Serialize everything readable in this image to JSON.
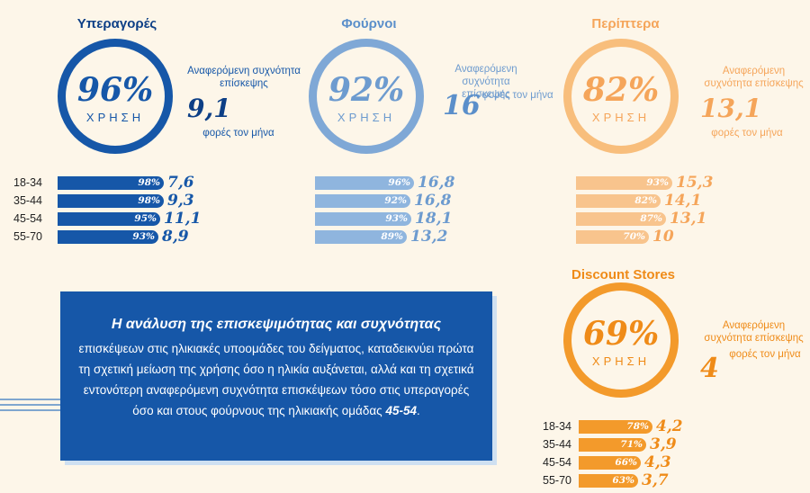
{
  "chart_data": [
    {
      "type": "bar",
      "title": "Υπεραγορές",
      "usage_percent": 96,
      "usage_pct_label": "96%",
      "usage_label": "ΧΡΗΣΗ",
      "frequency_label": "Αναφερόμενη συχνότητα επίσκεψης",
      "frequency_value_label": "9,1",
      "frequency_unit": "φορές τον μήνα",
      "categories": [
        "18-34",
        "35-44",
        "45-54",
        "55-70"
      ],
      "series": [
        {
          "name": "Χρήση %",
          "values": [
            98,
            98,
            95,
            93
          ],
          "labels": [
            "98%",
            "98%",
            "95%",
            "93%"
          ]
        },
        {
          "name": "Συχνότητα",
          "values": [
            7.6,
            9.3,
            11.1,
            8.9
          ],
          "labels": [
            "7,6",
            "9,3",
            "11,1",
            "8,9"
          ]
        }
      ],
      "colors": {
        "ring": "#1657a8",
        "title": "#0d3f86",
        "text": "#1657a8",
        "bar": "#1657a8",
        "value": "#1657a8"
      }
    },
    {
      "type": "bar",
      "title": "Φούρνοι",
      "usage_percent": 92,
      "usage_pct_label": "92%",
      "usage_label": "ΧΡΗΣΗ",
      "frequency_label": "Αναφερόμενη συχνότητα επίσκεψης",
      "frequency_value_label": "16",
      "frequency_unit": "φορές τον μήνα",
      "categories": [
        "18-34",
        "35-44",
        "45-54",
        "55-70"
      ],
      "series": [
        {
          "name": "Χρήση %",
          "values": [
            96,
            92,
            93,
            89
          ],
          "labels": [
            "96%",
            "92%",
            "93%",
            "89%"
          ]
        },
        {
          "name": "Συχνότητα",
          "values": [
            16.8,
            16.8,
            18.1,
            13.2
          ],
          "labels": [
            "16,8",
            "16,8",
            "18,1",
            "13,2"
          ]
        }
      ],
      "colors": {
        "ring": "#7fa8d6",
        "title": "#5b8fca",
        "text": "#6d9bcf",
        "bar": "#8fb5de",
        "value": "#6d9bcf"
      }
    },
    {
      "type": "bar",
      "title": "Περίπτερα",
      "usage_percent": 82,
      "usage_pct_label": "82%",
      "usage_label": "ΧΡΗΣΗ",
      "frequency_label": "Αναφερόμενη συχνότητα επίσκεψης",
      "frequency_value_label": "13,1",
      "frequency_unit": "φορές τον μήνα",
      "categories": [
        "18-34",
        "35-44",
        "45-54",
        "55-70"
      ],
      "series": [
        {
          "name": "Χρήση %",
          "values": [
            93,
            82,
            87,
            70
          ],
          "labels": [
            "93%",
            "82%",
            "87%",
            "70%"
          ]
        },
        {
          "name": "Συχνότητα",
          "values": [
            15.3,
            14.1,
            13.1,
            10
          ],
          "labels": [
            "15,3",
            "14,1",
            "13,1",
            "10"
          ]
        }
      ],
      "colors": {
        "ring": "#f8be7c",
        "title": "#f5a55a",
        "text": "#f5a55a",
        "bar": "#f8c48d",
        "value": "#f5a55a"
      }
    },
    {
      "type": "bar",
      "title": "Discount Stores",
      "usage_percent": 69,
      "usage_pct_label": "69%",
      "usage_label": "ΧΡΗΣΗ",
      "frequency_label": "Αναφερόμενη συχνότητα επίσκεψης",
      "frequency_value_label": "4",
      "frequency_unit": "φορές τον μήνα",
      "categories": [
        "18-34",
        "35-44",
        "45-54",
        "55-70"
      ],
      "series": [
        {
          "name": "Χρήση %",
          "values": [
            78,
            71,
            66,
            63
          ],
          "labels": [
            "78%",
            "71%",
            "66%",
            "63%"
          ]
        },
        {
          "name": "Συχνότητα",
          "values": [
            4.2,
            3.9,
            4.3,
            3.7
          ],
          "labels": [
            "4,2",
            "3,9",
            "4,3",
            "3,7"
          ]
        }
      ],
      "colors": {
        "ring": "#f39a2b",
        "title": "#ef8b18",
        "text": "#ef8b18",
        "bar": "#f39a2b",
        "value": "#ef8b18"
      }
    }
  ],
  "info": {
    "lead": "Η ανάλυση της επισκεψιμότητας και συχνότητας",
    "body": "επισκέψεων στις ηλικιακές υποομάδες του δείγματος, καταδεικνύει πρώτα τη σχετική μείωση της χρήσης όσο η ηλικία αυξάνεται, αλλά και τη σχετικά εντονότερη αναφερόμενη συχνότητα επισκέψεων τόσο στις υπεραγορές όσο και στους φούρνους της ηλικιακής ομάδας",
    "emphasis": "45-54",
    "end": ".",
    "box_color": "#1657a8"
  }
}
